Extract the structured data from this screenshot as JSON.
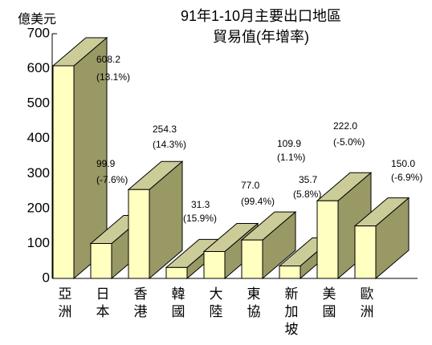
{
  "chart_data": {
    "type": "bar3d",
    "title": "91年1-10月主要出口地區",
    "subtitle": "貿易值(年增率)",
    "y_label": "億美元",
    "categories": [
      "亞洲",
      "日本",
      "香港",
      "韓國",
      "大陸",
      "東協",
      "新加坡",
      "美國",
      "歐洲"
    ],
    "values": [
      608.2,
      99.9,
      254.3,
      31.3,
      77.0,
      109.9,
      35.7,
      222.0,
      150.0
    ],
    "value_labels": [
      "608.2",
      "99.9",
      "254.3",
      "31.3",
      "77.0",
      "109.9",
      "35.7",
      "222.0",
      "150.0"
    ],
    "growth_labels": [
      "(13.1%)",
      "(-7.6%)",
      "(14.3%)",
      "(15.9%)",
      "(99.4%)",
      "(1.1%)",
      "(5.8%)",
      "(-5.0%)",
      "(-6.9%)"
    ],
    "colors": {
      "front": "#ffffc0",
      "top": "#cccc99",
      "side": "#999966"
    },
    "ylim": [
      0,
      700
    ],
    "yticks": [
      0,
      100,
      200,
      300,
      400,
      500,
      600,
      700
    ],
    "grid": false
  }
}
